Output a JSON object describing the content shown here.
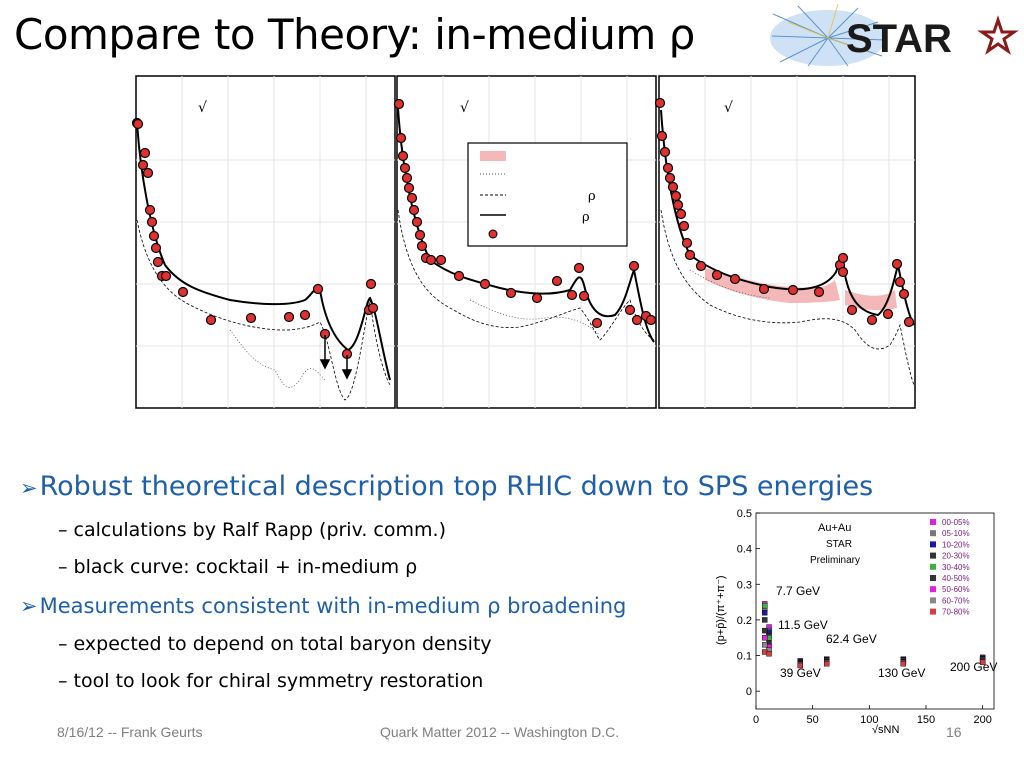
{
  "slide": {
    "title": "Compare to Theory: in-medium ρ",
    "logo_text": "STAR",
    "page_number": "16"
  },
  "panels": {
    "headers": [
      "√",
      "√",
      "√"
    ],
    "legend": {
      "entries": [
        {
          "marker": "band",
          "label": ""
        },
        {
          "marker": "dotted",
          "label": ""
        },
        {
          "marker": "dashed",
          "label": "ρ"
        },
        {
          "marker": "solid",
          "label": "ρ"
        },
        {
          "marker": "point",
          "label": ""
        }
      ]
    }
  },
  "bullets": {
    "main1": "Robust theoretical description top RHIC down to SPS energies",
    "sub1": "calculations by Ralf Rapp (priv. comm.)",
    "sub2": "black curve: cocktail + in-medium ρ",
    "main2": "Measurements consistent with in-medium ρ broadening",
    "sub3": "expected to depend on total baryon density",
    "sub4": "tool to look for chiral symmetry restoration"
  },
  "footer": {
    "left": "8/16/12 -- Frank Geurts",
    "center": "Quark Matter 2012 -- Washington D.C."
  },
  "chart_data": {
    "type": "scatter",
    "ylabel": "(p+p̄)/(π⁺+π⁻)",
    "xlabel": "√sNN",
    "xlim": [
      0,
      210
    ],
    "ylim": [
      -0.05,
      0.5
    ],
    "xticks": [
      "0",
      "50",
      "100",
      "150",
      "200"
    ],
    "yticks": [
      "0",
      "0.1",
      "0.2",
      "0.3",
      "0.4",
      "0.5"
    ],
    "annotations": [
      "Au+Au",
      "STAR",
      "Preliminary",
      "7.7 GeV",
      "11.5 GeV",
      "39 GeV",
      "62.4 GeV",
      "130 GeV",
      "200 GeV"
    ],
    "legend_position": "top-right",
    "series": [
      {
        "name": "00-05%",
        "color": "#e020e0",
        "x": [
          7.7,
          11.5,
          39,
          62.4,
          130,
          200
        ],
        "y": [
          0.245,
          0.18,
          0.085,
          0.09,
          0.09,
          0.095
        ]
      },
      {
        "name": "05-10%",
        "color": "#777777",
        "x": [
          7.7,
          11.5,
          39,
          62.4,
          130,
          200
        ],
        "y": [
          0.23,
          0.17,
          0.083,
          0.088,
          0.088,
          0.093
        ]
      },
      {
        "name": "10-20%",
        "color": "#1a1aa0",
        "x": [
          7.7,
          11.5,
          39,
          62.4,
          130,
          200
        ],
        "y": [
          0.22,
          0.165,
          0.082,
          0.087,
          0.087,
          0.092
        ]
      },
      {
        "name": "20-30%",
        "color": "#333333",
        "x": [
          7.7,
          11.5,
          39,
          62.4,
          130,
          200
        ],
        "y": [
          0.2,
          0.155,
          0.08,
          0.086,
          0.086,
          0.09
        ]
      },
      {
        "name": "30-40%",
        "color": "#40b040",
        "x": [
          7.7,
          11.5,
          39,
          62.4,
          130,
          200
        ],
        "y": [
          0.24,
          0.15,
          0.079,
          0.085,
          0.085,
          0.089
        ]
      },
      {
        "name": "40-50%",
        "color": "#333333",
        "x": [
          7.7,
          11.5,
          39,
          62.4,
          130,
          200
        ],
        "y": [
          0.17,
          0.135,
          0.078,
          0.083,
          0.083,
          0.087
        ]
      },
      {
        "name": "50-60%",
        "color": "#e020e0",
        "x": [
          7.7,
          11.5,
          39,
          62.4,
          130,
          200
        ],
        "y": [
          0.15,
          0.125,
          0.076,
          0.081,
          0.081,
          0.085
        ]
      },
      {
        "name": "60-70%",
        "color": "#888888",
        "x": [
          7.7,
          11.5,
          39,
          62.4,
          130,
          200
        ],
        "y": [
          0.13,
          0.115,
          0.074,
          0.079,
          0.079,
          0.083
        ]
      },
      {
        "name": "70-80%",
        "color": "#d04040",
        "x": [
          7.7,
          11.5,
          39,
          62.4,
          130,
          200
        ],
        "y": [
          0.11,
          0.105,
          0.072,
          0.077,
          0.077,
          0.081
        ]
      }
    ]
  },
  "colors": {
    "title": "#000000",
    "bullet": "#1f5fa8",
    "star_red": "#8b1a1a",
    "data_point": "#e03030",
    "band": "#f4b8b8",
    "footer": "#7f7f7f"
  }
}
